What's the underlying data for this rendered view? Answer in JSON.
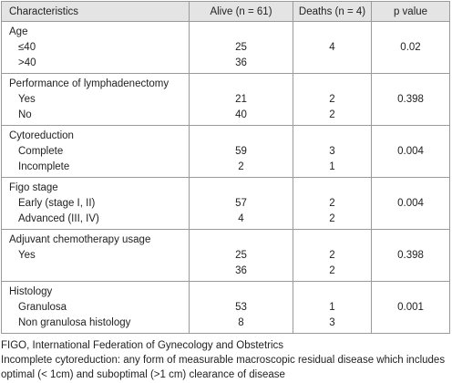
{
  "table": {
    "header": [
      "Characteristics",
      "Alive (n = 61)",
      "Deaths (n = 4)",
      "p value"
    ],
    "groups": [
      {
        "label": "Age",
        "rows": [
          [
            "≤40",
            25,
            4,
            0.02
          ],
          [
            ">40",
            36,
            null,
            null
          ]
        ]
      },
      {
        "label": "Performance of lymphadenectomy",
        "rows": [
          [
            "Yes",
            21,
            2,
            0.398
          ],
          [
            "No",
            40,
            2,
            null
          ]
        ]
      },
      {
        "label": "Cytoreduction",
        "rows": [
          [
            "Complete",
            59,
            3,
            0.004
          ],
          [
            "Incomplete",
            2,
            1,
            null
          ]
        ]
      },
      {
        "label": "Figo stage",
        "rows": [
          [
            "Early (stage I, II)",
            57,
            2,
            0.004
          ],
          [
            "Advanced (III, IV)",
            4,
            2,
            null
          ]
        ]
      },
      {
        "label": "Adjuvant chemotherapy usage",
        "rows": [
          [
            "Yes",
            25,
            2,
            0.398
          ],
          [
            null,
            36,
            2,
            null
          ]
        ]
      },
      {
        "label": "Histology",
        "rows": [
          [
            "Granulosa",
            53,
            1,
            0.001
          ],
          [
            "Non granulosa histology",
            8,
            3,
            null
          ]
        ]
      }
    ]
  },
  "footnotes": [
    "FIGO, International Federation of Gynecology and Obstetrics",
    "Incomplete cytoreduction: any form of measurable macroscopic residual disease which includes optimal (< 1cm) and suboptimal (>1 cm) clearance of disease"
  ]
}
